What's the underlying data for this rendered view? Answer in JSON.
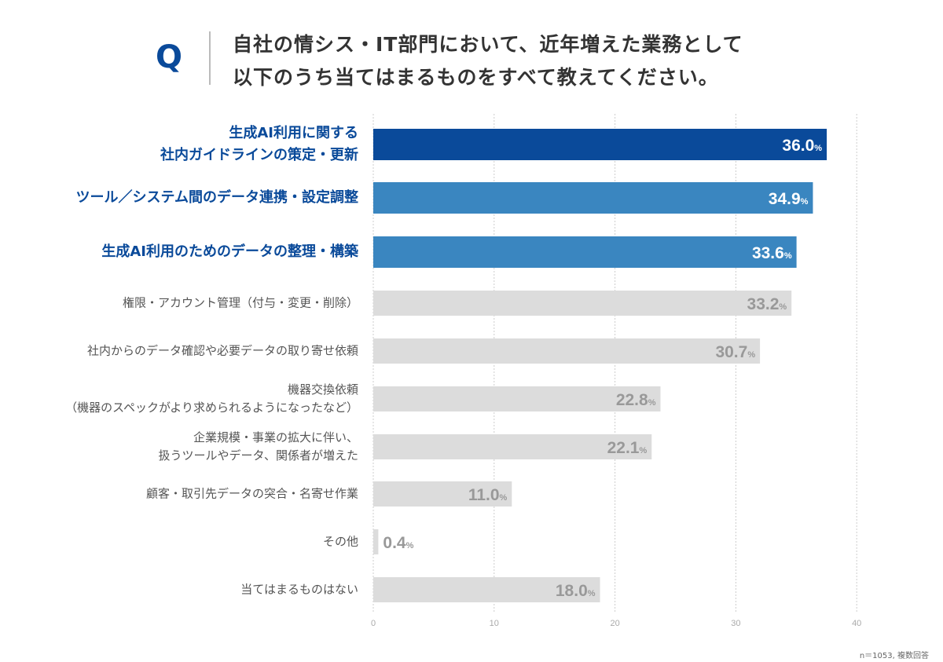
{
  "question": {
    "mark": "Q",
    "line1": "自社の情シス・IT部門において、近年増えた業務として",
    "line2": "以下のうち当てはまるものをすべて教えてください。"
  },
  "footnote": "n＝1053, 複数回答",
  "colors": {
    "primary": "#0a4a9a",
    "secondary": "#3a86c0",
    "other": "#dcdcdc",
    "value_other": "#999999"
  },
  "chart_data": {
    "type": "bar",
    "orientation": "horizontal",
    "unit": "%",
    "categories": [
      "生成AI利用に関する\n社内ガイドラインの策定・更新",
      "ツール／システム間のデータ連携・設定調整",
      "生成AI利用のためのデータの整理・構築",
      "権限・アカウント管理（付与・変更・削除）",
      "社内からのデータ確認や必要データの取り寄せ依頼",
      "機器交換依頼\n（機器のスペックがより求められるようになったなど）",
      "企業規模・事業の拡大に伴い、\n扱うツールやデータ、関係者が増えた",
      "顧客・取引先データの突合・名寄せ作業",
      "その他",
      "当てはまるものはない"
    ],
    "values": [
      36.0,
      34.9,
      33.6,
      33.2,
      30.7,
      22.8,
      22.1,
      11.0,
      0.4,
      18.0
    ],
    "value_labels": [
      "36.0",
      "34.9",
      "33.6",
      "33.2",
      "30.7",
      "22.8",
      "22.1",
      "11.0",
      "0.4",
      "18.0"
    ],
    "highlight": [
      "primary",
      "secondary",
      "secondary",
      "other",
      "other",
      "other",
      "other",
      "other",
      "other",
      "other"
    ],
    "xlim": [
      0,
      40
    ],
    "xticks": [
      "0",
      "10",
      "20",
      "30",
      "40"
    ],
    "grid": true
  }
}
